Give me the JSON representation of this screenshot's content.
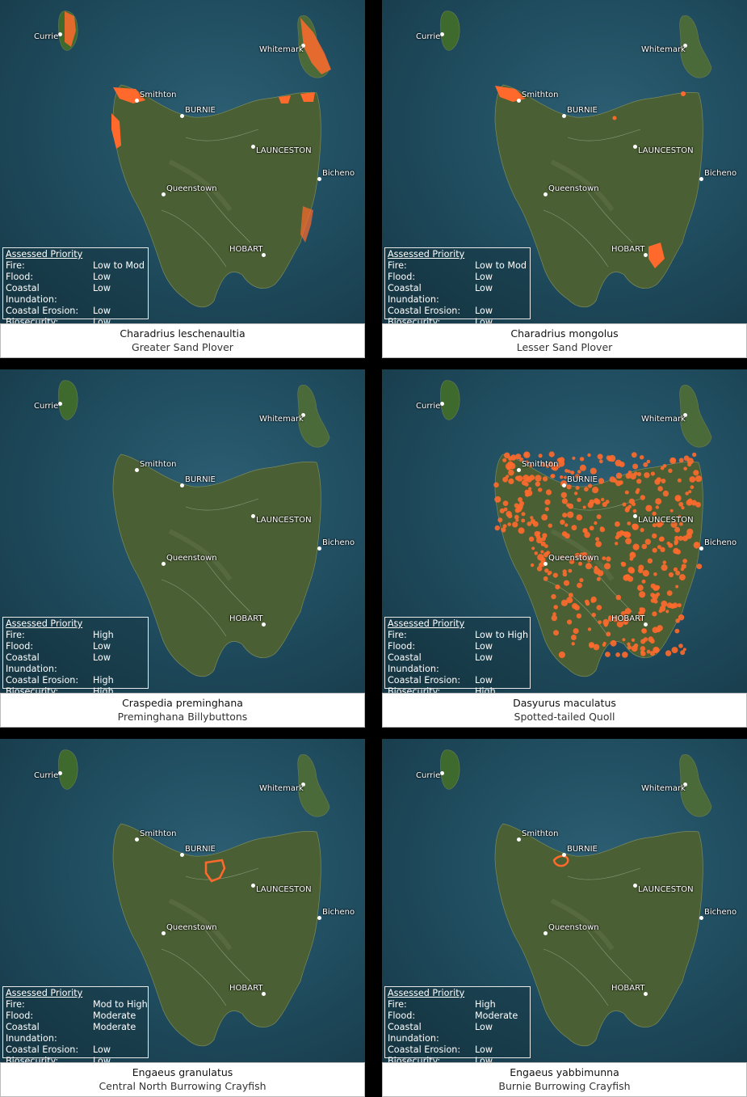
{
  "priority_title": "Assessed Priority",
  "priority_labels": {
    "fire": "Fire:",
    "flood": "Flood:",
    "inundation": "Coastal Inundation:",
    "erosion": "Coastal Erosion:",
    "biosecurity": "Biosecurity:"
  },
  "cities": {
    "currie": "Currie",
    "whitemark": "Whitemark",
    "smithton": "Smithton",
    "burnie": "BURNIE",
    "launceston": "LAUNCESTON",
    "bicheno": "Bicheno",
    "queenstown": "Queenstown",
    "hobart": "HOBART"
  },
  "colors": {
    "occurrence": "#ff6a2c",
    "sea": "#1e4a5c",
    "land": "#3e5a2c"
  },
  "panels": [
    {
      "scientific": "Charadrius leschenaultia",
      "common": "Greater Sand Plover",
      "fire": "Low to Mod",
      "flood": "Low",
      "inundation": "Low",
      "erosion": "Low",
      "biosecurity": "Low"
    },
    {
      "scientific": "Charadrius mongolus",
      "common": "Lesser Sand Plover",
      "fire": "Low to Mod",
      "flood": "Low",
      "inundation": "Low",
      "erosion": "Low",
      "biosecurity": "Low"
    },
    {
      "scientific": "Craspedia preminghana",
      "common": "Preminghana Billybuttons",
      "fire": "High",
      "flood": "Low",
      "inundation": "Low",
      "erosion": "High",
      "biosecurity": "High"
    },
    {
      "scientific": "Dasyurus maculatus",
      "common": "Spotted-tailed Quoll",
      "fire": "Low to High",
      "flood": "Low",
      "inundation": "Low",
      "erosion": "Low",
      "biosecurity": "High"
    },
    {
      "scientific": "Engaeus granulatus",
      "common": "Central North Burrowing Crayfish",
      "fire": "Mod to High",
      "flood": "Moderate",
      "inundation": "Moderate",
      "erosion": "Low",
      "biosecurity": "Low"
    },
    {
      "scientific": "Engaeus yabbimunna",
      "common": "Burnie Burrowing Crayfish",
      "fire": "High",
      "flood": "Moderate",
      "inundation": "Low",
      "erosion": "Low",
      "biosecurity": "Low"
    }
  ]
}
